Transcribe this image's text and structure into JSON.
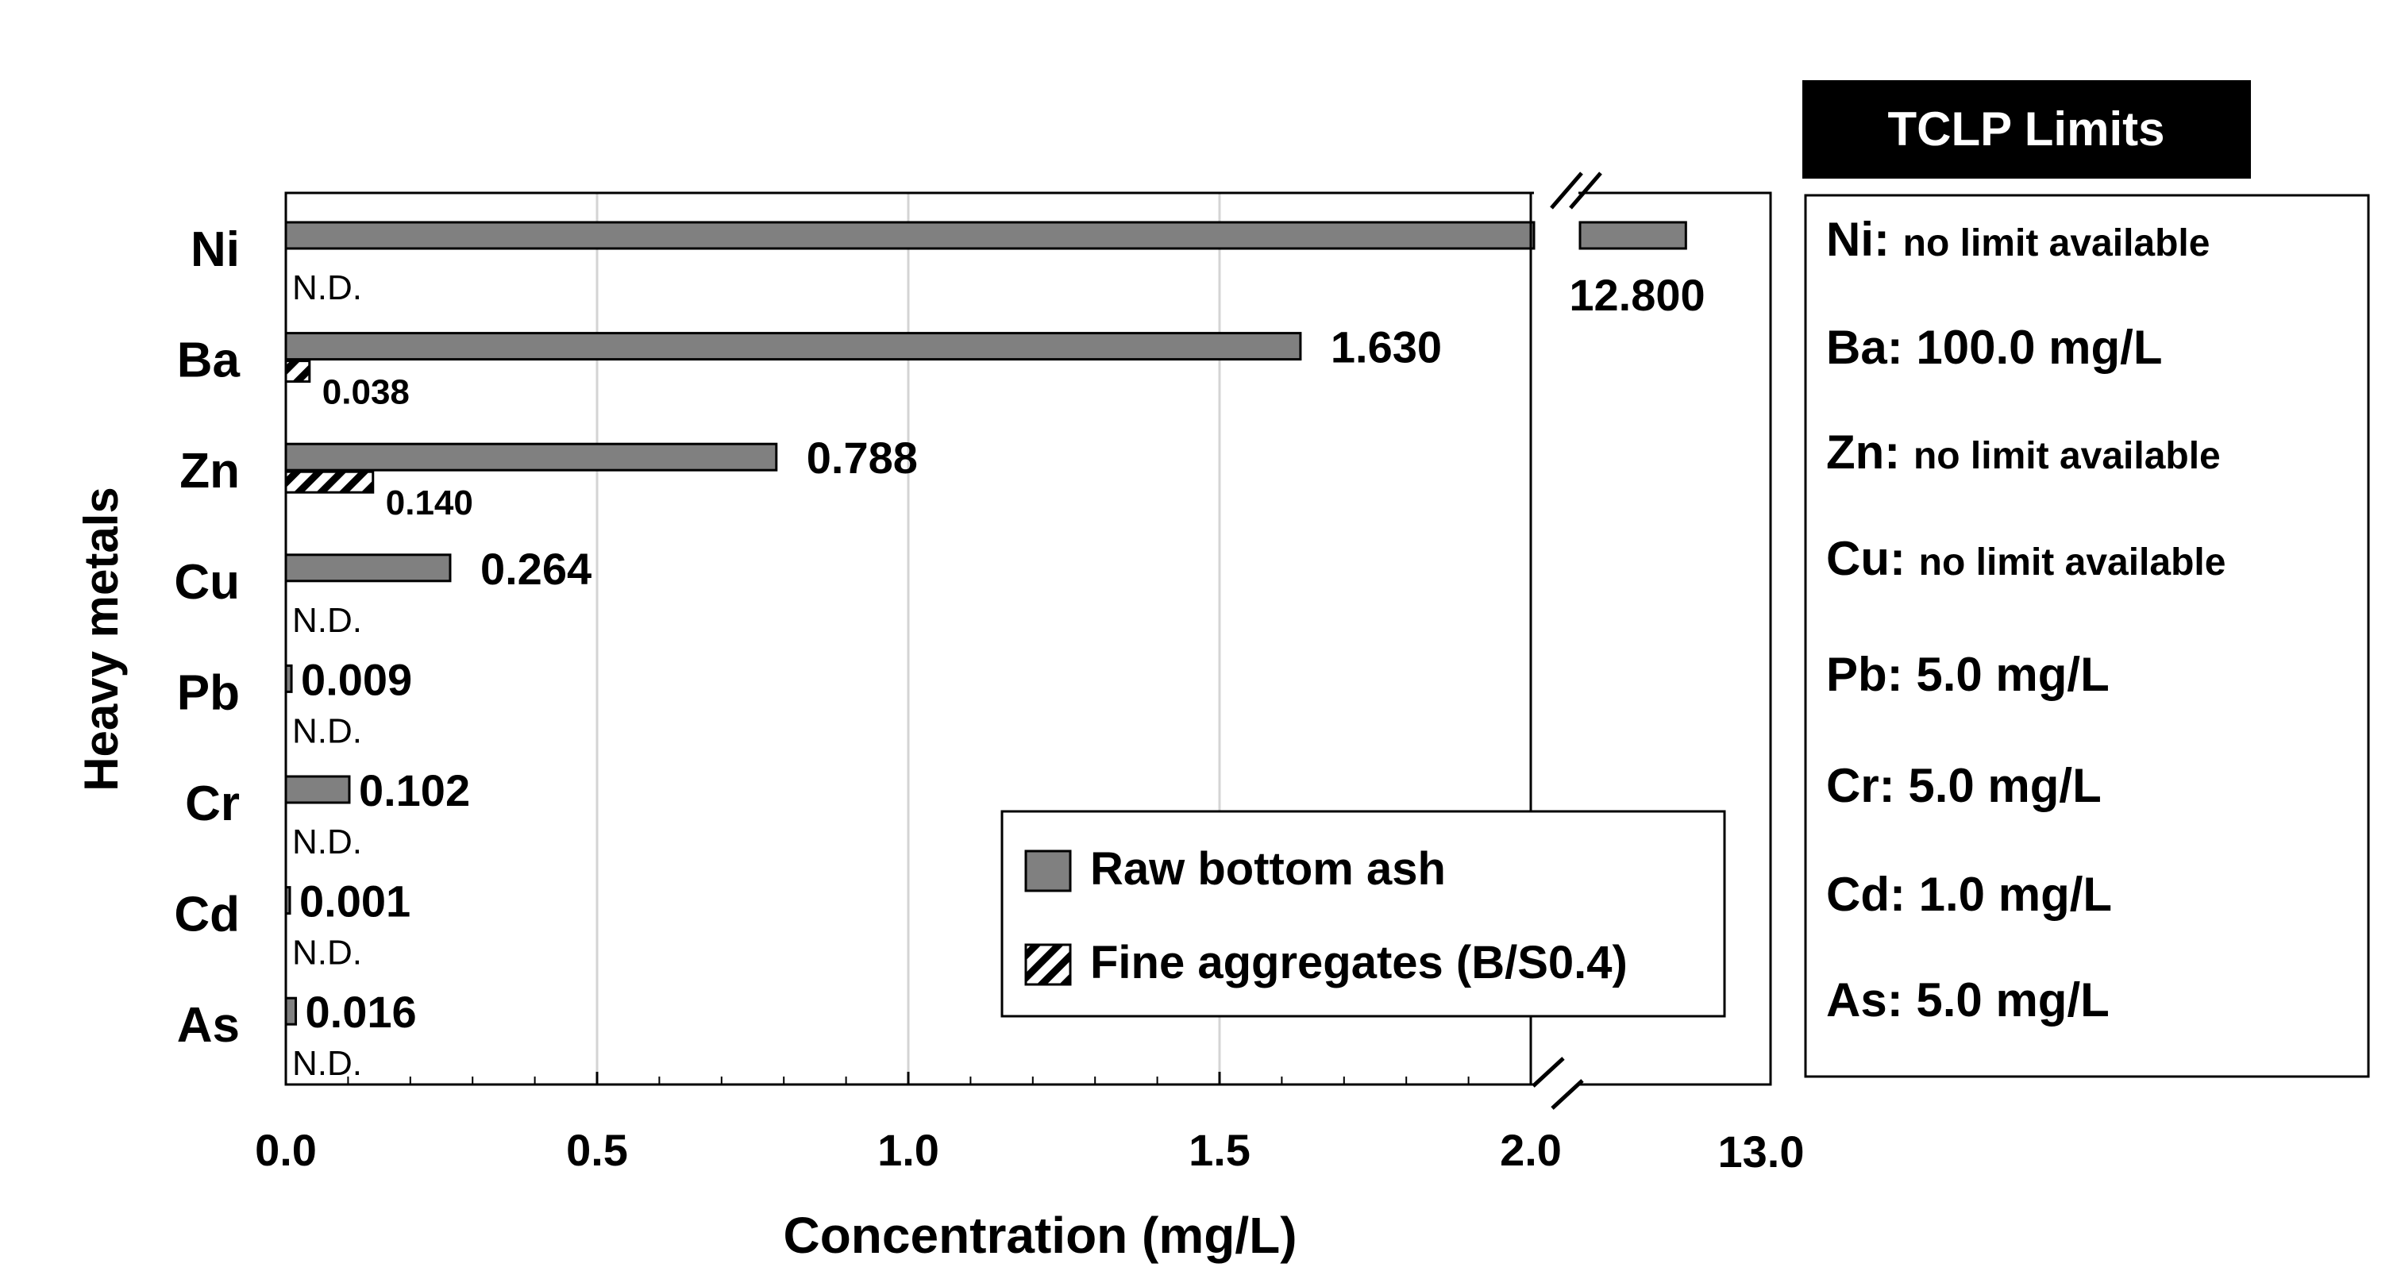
{
  "chart_data": {
    "type": "bar",
    "orientation": "horizontal",
    "categories": [
      "Ni",
      "Ba",
      "Zn",
      "Cu",
      "Pb",
      "Cr",
      "Cd",
      "As"
    ],
    "series": [
      {
        "name": "Raw bottom ash",
        "values": [
          12.8,
          1.63,
          0.788,
          0.264,
          0.009,
          0.102,
          0.001,
          0.016
        ],
        "labels": [
          "12.800",
          "1.630",
          "0.788",
          "0.264",
          "0.009",
          "0.102",
          "0.001",
          "0.016"
        ]
      },
      {
        "name": "Fine aggregates (B/S0.4)",
        "values": [
          null,
          0.038,
          0.14,
          null,
          null,
          null,
          null,
          null
        ],
        "labels": [
          "N.D.",
          "0.038",
          "0.140",
          "N.D.",
          "N.D.",
          "N.D.",
          "N.D.",
          "N.D."
        ]
      }
    ],
    "xlabel": "Concentration (mg/L)",
    "ylabel": "Heavy metals",
    "xlim": [
      0,
      2.0
    ],
    "x_break": {
      "from": 2.0,
      "to": 13.0
    },
    "x_ticks": [
      "0.0",
      "0.5",
      "1.0",
      "1.5",
      "2.0",
      "13.0"
    ],
    "gridlines": "vertical",
    "legend_position": "bottom-right inside plot"
  },
  "tclp": {
    "title": "TCLP Limits",
    "items": [
      {
        "metal": "Ni:",
        "limit": "no limit available"
      },
      {
        "metal": "Ba:",
        "limit": "100.0 mg/L"
      },
      {
        "metal": "Zn:",
        "limit": "no limit available"
      },
      {
        "metal": "Cu:",
        "limit": "no limit available"
      },
      {
        "metal": "Pb:",
        "limit": "5.0 mg/L"
      },
      {
        "metal": "Cr:",
        "limit": "5.0 mg/L"
      },
      {
        "metal": "Cd:",
        "limit": "1.0 mg/L"
      },
      {
        "metal": "As:",
        "limit": "5.0 mg/L"
      }
    ]
  },
  "colors": {
    "raw": "#808080",
    "fine": "#ffffff",
    "grid": "#d4d4d4",
    "axis": "#000000"
  }
}
